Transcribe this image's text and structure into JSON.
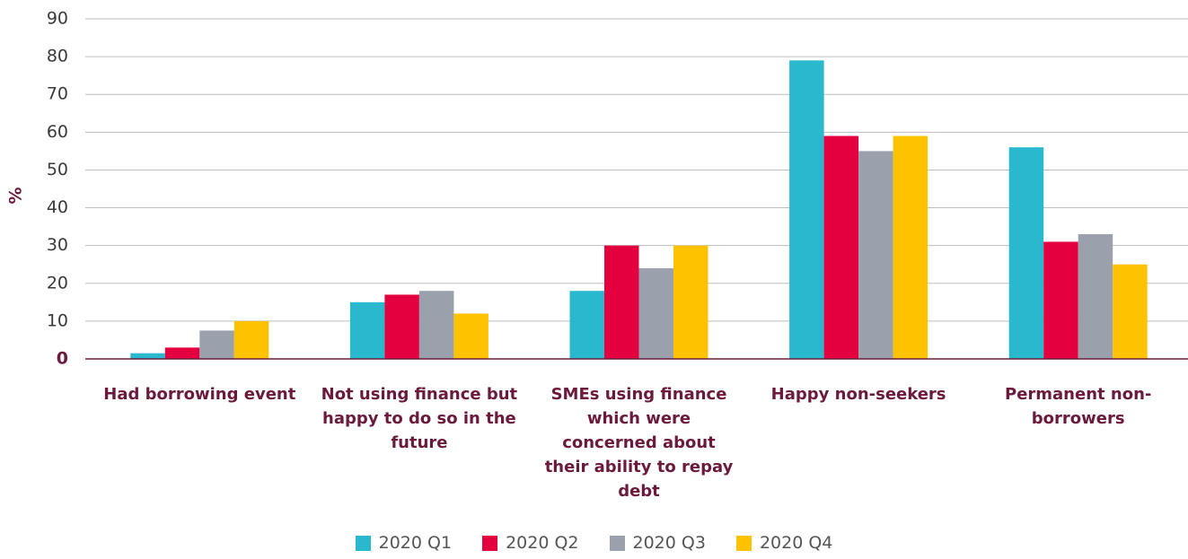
{
  "chart_data": {
    "type": "bar",
    "y_label": "%",
    "categories": [
      "Had borrowing event",
      "Not using finance but happy to do so in the future",
      "SMEs using finance which were concerned about their ability to repay debt",
      "Happy non-seekers",
      "Permanent non-borrowers"
    ],
    "series": [
      {
        "name": "2020 Q1",
        "color": "#29b8ce",
        "values": [
          1.5,
          15,
          18,
          79,
          56
        ]
      },
      {
        "name": "2020 Q2",
        "color": "#e4003f",
        "values": [
          3,
          17,
          30,
          59,
          31
        ]
      },
      {
        "name": "2020 Q3",
        "color": "#9aa0ac",
        "values": [
          7.5,
          18,
          24,
          55,
          33
        ]
      },
      {
        "name": "2020 Q4",
        "color": "#ffc200",
        "values": [
          10,
          12,
          30,
          59,
          25
        ]
      }
    ],
    "ylim": [
      0,
      90
    ],
    "yticks": [
      0,
      10,
      20,
      30,
      40,
      50,
      60,
      70,
      80,
      90
    ],
    "grid": true,
    "legend": "bottom"
  }
}
